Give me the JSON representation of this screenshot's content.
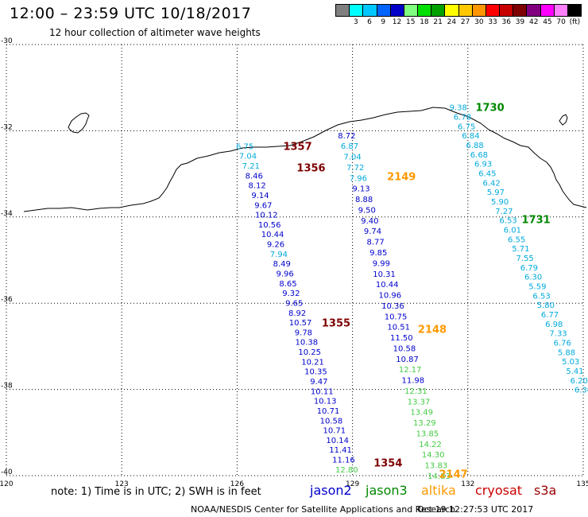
{
  "title": "12:00 – 23:59 UTC 10/18/2017",
  "subtitle": "12 hour collection of altimeter wave heights",
  "legend": {
    "swatches": [
      "#7f7f7f",
      "#00ffff",
      "#00c8ff",
      "#0064ff",
      "#0000c8",
      "#80ff80",
      "#00e000",
      "#00a000",
      "#ffff00",
      "#ffc800",
      "#ff9600",
      "#ff0000",
      "#c80000",
      "#7f0000",
      "#800080",
      "#ff00ff",
      "#ff80ff",
      "#000000"
    ],
    "labels": [
      "3",
      "6",
      "9",
      "12",
      "15",
      "18",
      "21",
      "24",
      "27",
      "30",
      "33",
      "36",
      "39",
      "42",
      "45",
      "70",
      "(ft)"
    ]
  },
  "note": "note: 1) Time is in UTC; 2) SWH is in feet",
  "satellites": [
    {
      "name": "jason2",
      "color": "#0000cc"
    },
    {
      "name": "jason3",
      "color": "#008800"
    },
    {
      "name": "altika",
      "color": "#ff9900"
    },
    {
      "name": "cryosat",
      "color": "#cc0000"
    },
    {
      "name": "s3a",
      "color": "#990000"
    }
  ],
  "credit": "NOAA/NESDIS Center for Satellite Applications and Research",
  "generated": "Oct 19 12:27:53 UTC 2017",
  "map": {
    "lon_range": [
      120,
      135
    ],
    "lat_range": [
      -40,
      -30
    ],
    "lon_ticks": [
      "120",
      "123",
      "126",
      "129",
      "132",
      "135"
    ],
    "lat_ticks": [
      "-30",
      "-32",
      "-34",
      "-36",
      "-38",
      "-40"
    ],
    "tracks": [
      {
        "color": "#00aadd",
        "start_lon": 131.75,
        "start_lat": -31.45,
        "end_lon": 135.0,
        "end_lat": -38.0,
        "values": [
          "9.38",
          "6.78",
          "6.75",
          "6.84",
          "6.88",
          "6.68",
          "6.93",
          "6.45",
          "6.42",
          "5.97",
          "5.90",
          "7.27",
          "6.53",
          "6.01",
          "6.55",
          "5.71",
          "7.55",
          "6.79",
          "6.30",
          "5.59",
          "6.53",
          "5.80",
          "6.77",
          "6.98",
          "7.33",
          "6.76",
          "5.88",
          "5.03",
          "5.41",
          "6.20",
          "6.30"
        ]
      },
      {
        "color": "#0000cc",
        "start_lon": 126.2,
        "start_lat": -32.35,
        "end_lon": 128.85,
        "end_lat": -39.85,
        "values": [
          "6.75",
          "7.04",
          "7.21",
          "8.46",
          "8.12",
          "9.14",
          "9.67",
          "10.12",
          "10.56",
          "10.44",
          "9.26",
          "7.94",
          "8.49",
          "9.96",
          "8.65",
          "9.32",
          "9.65",
          "8.92",
          "10.57",
          "9.78",
          "10.38",
          "10.25",
          "10.21",
          "10.35",
          "9.47",
          "10.11",
          "10.13",
          "10.71",
          "10.58",
          "10.71",
          "10.14",
          "11.41",
          "11.16",
          "12.80"
        ]
      },
      {
        "color": "#0000cc",
        "start_lon": 128.85,
        "start_lat": -32.1,
        "end_lon": 131.25,
        "end_lat": -40.0,
        "values": [
          "8.72",
          "6.87",
          "7.04",
          "7.72",
          "7.96",
          "9.13",
          "8.88",
          "9.50",
          "9.40",
          "9.74",
          "8.77",
          "9.85",
          "9.99",
          "10.31",
          "10.44",
          "10.96",
          "10.36",
          "10.75",
          "10.51",
          "11.50",
          "10.58",
          "10.87",
          "12.17",
          "11.98",
          "12.31",
          "13.37",
          "13.49",
          "13.29",
          "13.85",
          "14.22",
          "14.30",
          "13.83",
          "14.83"
        ]
      }
    ],
    "pass_labels": [
      {
        "text": "1730",
        "lon": 132.2,
        "lat": -31.45,
        "color": "#008800"
      },
      {
        "text": "1731",
        "lon": 133.4,
        "lat": -34.05,
        "color": "#008800"
      },
      {
        "text": "1357",
        "lon": 127.2,
        "lat": -32.35,
        "color": "#7f0000"
      },
      {
        "text": "1356",
        "lon": 127.55,
        "lat": -32.85,
        "color": "#7f0000"
      },
      {
        "text": "2149",
        "lon": 129.9,
        "lat": -33.05,
        "color": "#ff9900"
      },
      {
        "text": "1355",
        "lon": 128.2,
        "lat": -36.45,
        "color": "#7f0000"
      },
      {
        "text": "2148",
        "lon": 130.7,
        "lat": -36.6,
        "color": "#ff9900"
      },
      {
        "text": "1354",
        "lon": 129.55,
        "lat": -39.7,
        "color": "#7f0000"
      },
      {
        "text": "2147",
        "lon": 131.25,
        "lat": -39.95,
        "color": "#ff9900"
      }
    ]
  }
}
